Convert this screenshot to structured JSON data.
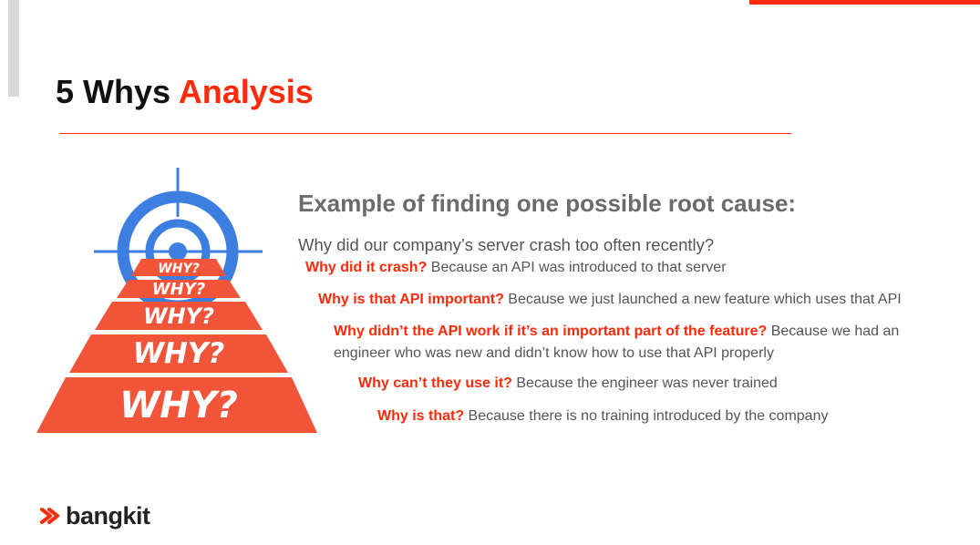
{
  "slide": {
    "title_main": "5 Whys ",
    "title_accent": "Analysis",
    "subtitle": "Example of finding one possible root cause:",
    "question": "Why did our company’s server crash too often recently?",
    "whys": [
      {
        "q": "Why did it crash?",
        "a": " Because an API was introduced to that server"
      },
      {
        "q": "Why is that API important?",
        "a": " Because we just launched a new feature which uses that API"
      },
      {
        "q": "Why didn’t the API work if it’s an important part of the feature?",
        "a": " Because we had an engineer who was new and didn’t know how to use that API properly"
      },
      {
        "q": "Why can’t they use it?",
        "a": " Because the engineer was never trained"
      },
      {
        "q": "Why is that?",
        "a": " Because there is no training introduced by the company"
      }
    ]
  },
  "graphic": {
    "labels": [
      "WHY?",
      "WHY?",
      "WHY?",
      "WHY?",
      "WHY?"
    ],
    "colors": {
      "target": "#3d7fe0",
      "pyramid": "#f2543a",
      "text": "#ffffff"
    }
  },
  "logo": {
    "text": "bangkit"
  },
  "colors": {
    "accent": "#ff2a0a",
    "text": "#555555",
    "subtitle": "#6b6b6b"
  }
}
